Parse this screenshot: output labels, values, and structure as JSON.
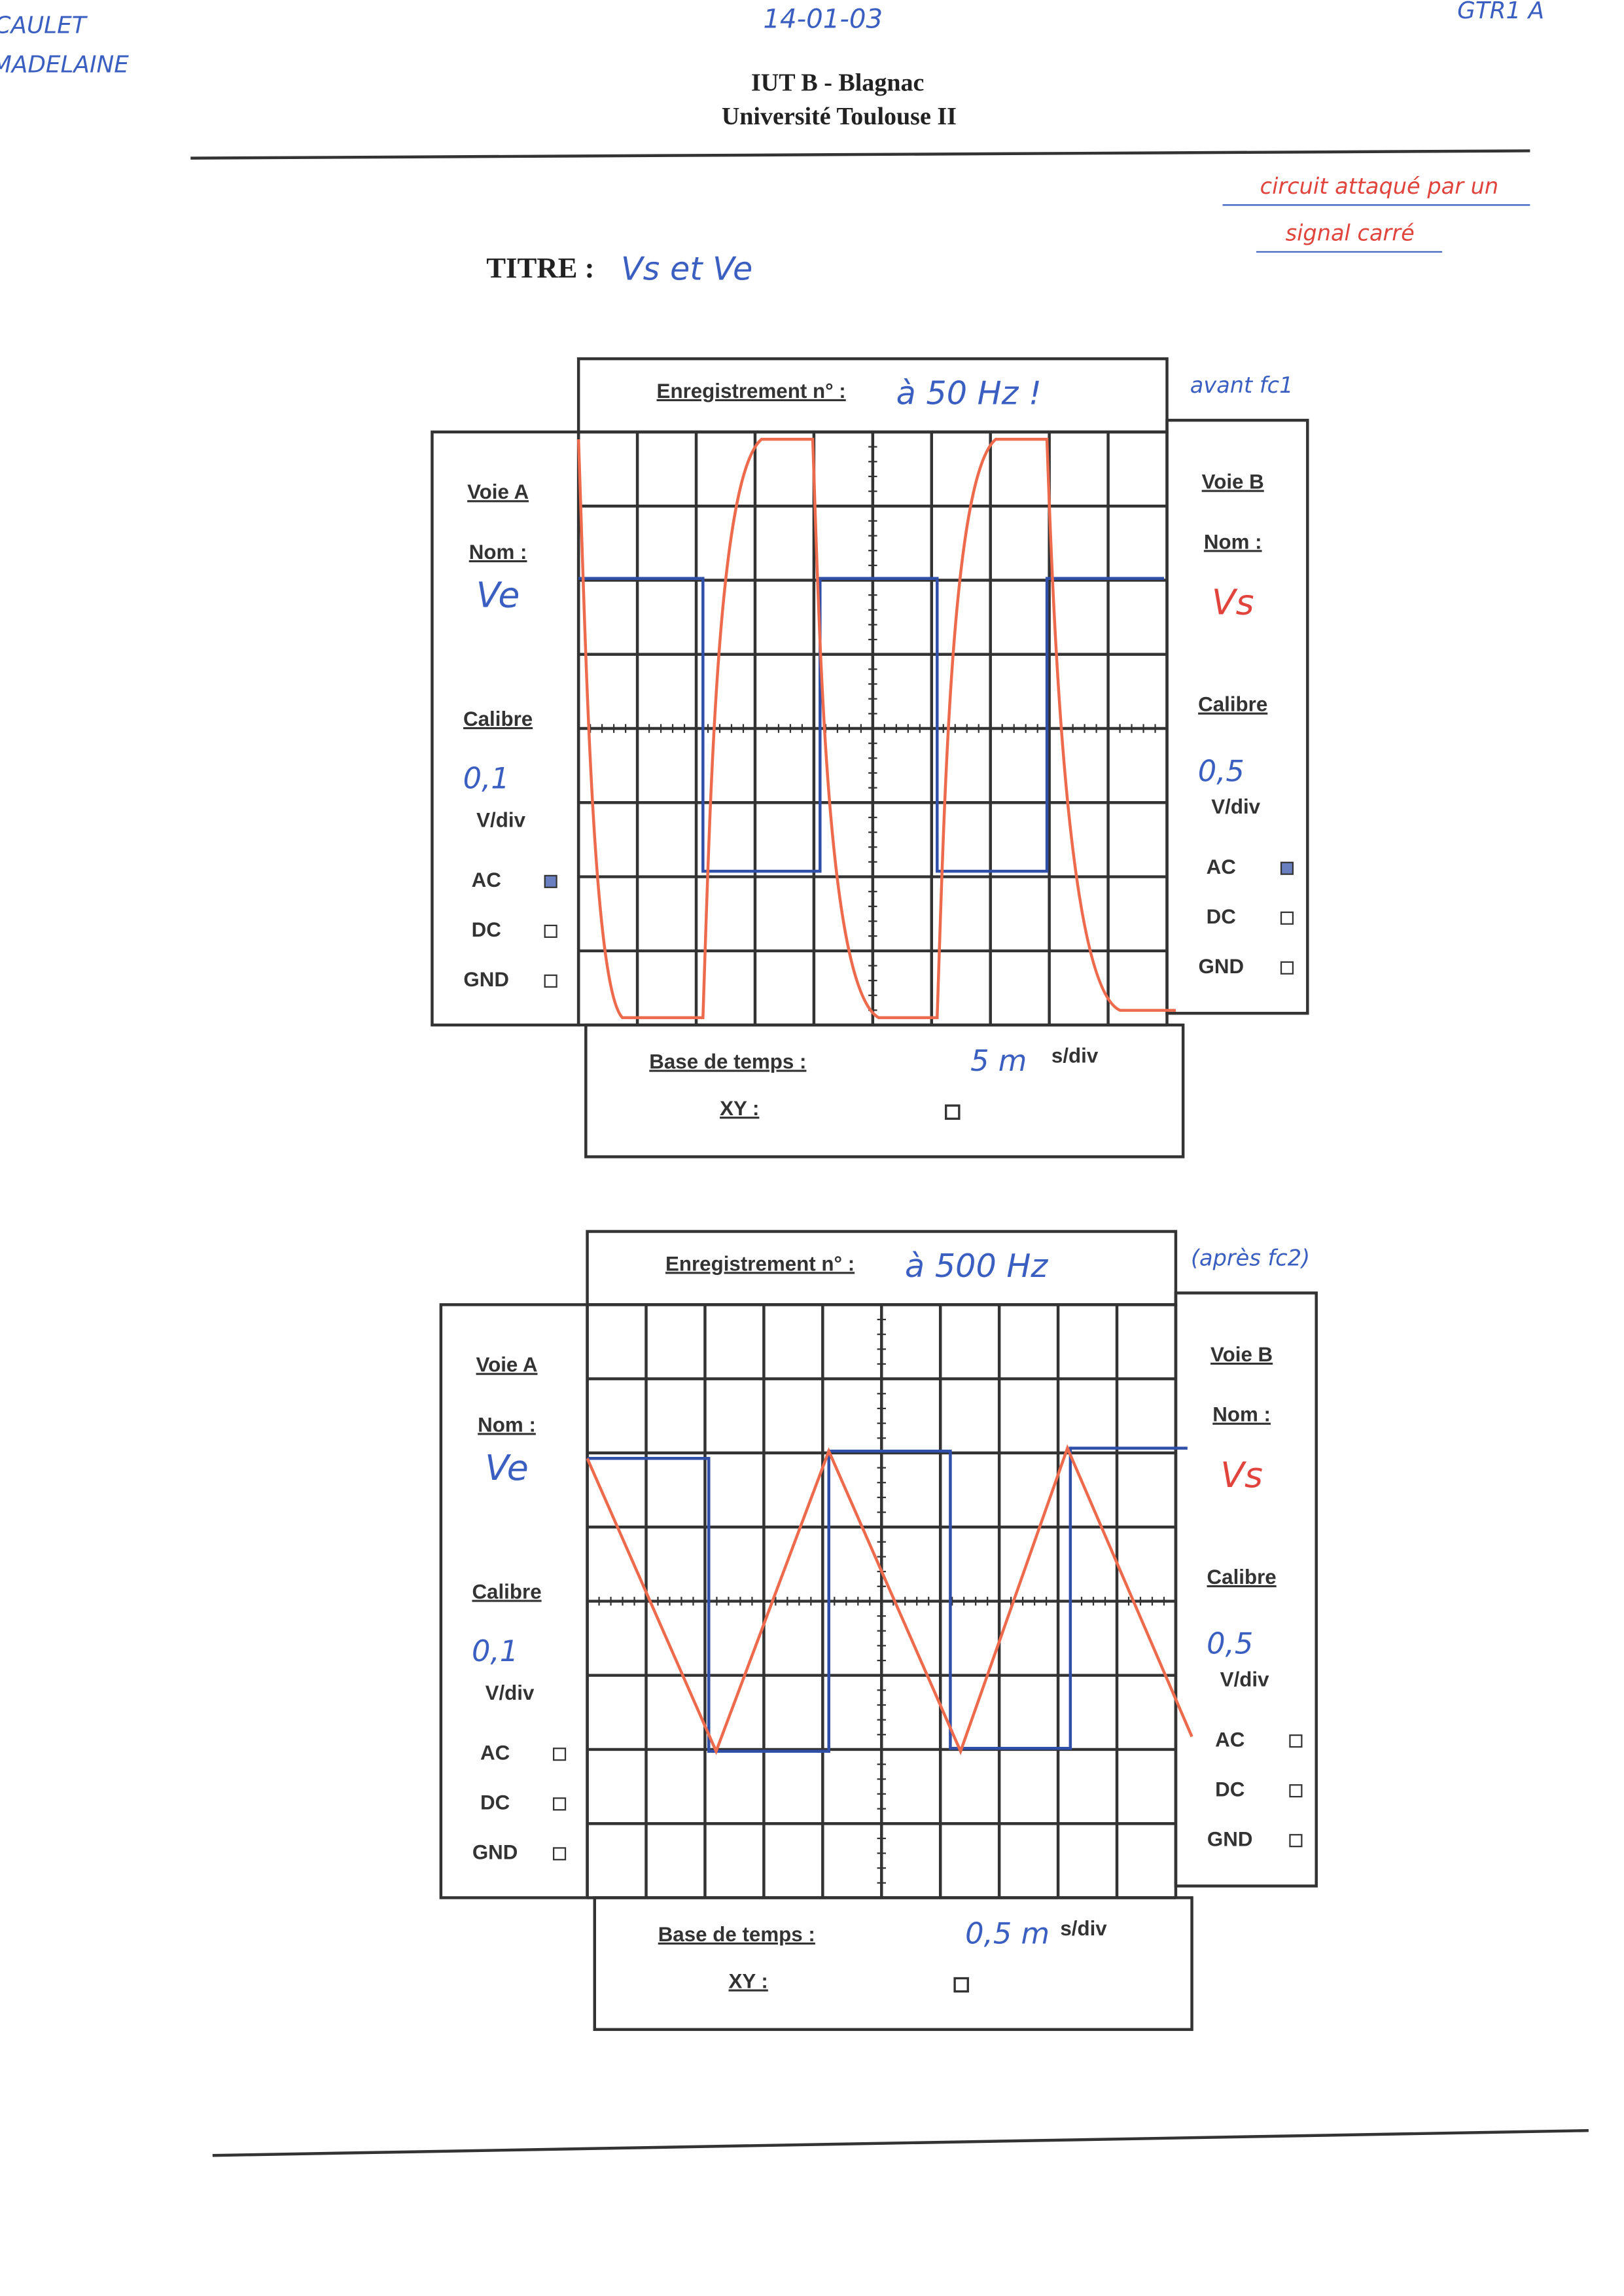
{
  "student": {
    "last_name": "CAULET",
    "first_name": "MADELAINE"
  },
  "date": "14-01-03",
  "group": "GTR1 A",
  "header": {
    "school": "IUT B - Blagnac",
    "university": "Université Toulouse II"
  },
  "annotation": {
    "line1": "circuit attaqué par un",
    "line2": "signal carré"
  },
  "title": {
    "label": "TITRE :",
    "value": "Vs et Ve"
  },
  "forms": [
    {
      "record_label": "Enregistrement n° :",
      "record_value": "à 50 Hz !",
      "note": "avant fc1",
      "channel_a": {
        "label": "Voie A",
        "name_label": "Nom :",
        "name": "Ve",
        "calibre_label": "Calibre",
        "calibre": "0,1",
        "unit": "V/div",
        "coupling": [
          "AC",
          "DC",
          "GND"
        ]
      },
      "channel_b": {
        "label": "Voie B",
        "name_label": "Nom :",
        "name": "Vs",
        "calibre_label": "Calibre",
        "calibre": "0,5",
        "unit": "V/div",
        "coupling": [
          "AC",
          "DC",
          "GND"
        ]
      },
      "timebase": {
        "label": "Base de temps :",
        "value": "5 m",
        "unit": "s/div"
      },
      "xy_label": "XY :"
    },
    {
      "record_label": "Enregistrement n° :",
      "record_value": "à 500 Hz",
      "note": "(après fc2)",
      "channel_a": {
        "label": "Voie A",
        "name_label": "Nom :",
        "name": "Ve",
        "calibre_label": "Calibre",
        "calibre": "0,1",
        "unit": "V/div",
        "coupling": [
          "AC",
          "DC",
          "GND"
        ]
      },
      "channel_b": {
        "label": "Voie B",
        "name_label": "Nom :",
        "name": "Vs",
        "calibre_label": "Calibre",
        "calibre": "0,5",
        "unit": "V/div",
        "coupling": [
          "AC",
          "DC",
          "GND"
        ]
      },
      "timebase": {
        "label": "Base de temps :",
        "value": "0,5 m",
        "unit": "s/div"
      },
      "xy_label": "XY :"
    }
  ]
}
